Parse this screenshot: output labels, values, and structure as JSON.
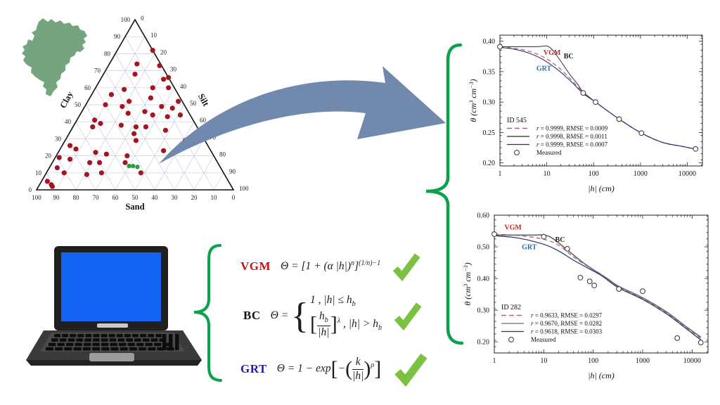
{
  "figure": {
    "background": "#ffffff",
    "map": {
      "name": "Brazil",
      "fill": "#74a57e"
    },
    "arrow": {
      "fill": "#7189ac"
    },
    "brace_color": "#0ba24c",
    "check_color": "#7dc142"
  },
  "equations": [
    {
      "name": "VGM",
      "color": "#cc1111",
      "tokens": [
        {
          "k": "txt",
          "t": "Θ = [1 + (α |h|)"
        },
        {
          "k": "sup",
          "t": "n"
        },
        {
          "k": "txt",
          "t": "]"
        },
        {
          "k": "sup",
          "t": "(1/n)−1"
        }
      ]
    },
    {
      "name": "BC",
      "color": "#111111",
      "tokens": [
        {
          "k": "txt",
          "t": "Θ = "
        },
        {
          "k": "cases",
          "rows": [
            [
              {
                "k": "txt",
                "t": "1 ,  |h| ≤ h"
              },
              {
                "k": "sub",
                "t": "b"
              }
            ],
            [
              {
                "k": "big",
                "t": "["
              },
              {
                "k": "frac",
                "num": [
                  {
                    "k": "txt",
                    "t": "h"
                  },
                  {
                    "k": "sub",
                    "t": "b"
                  }
                ],
                "den": [
                  {
                    "k": "txt",
                    "t": "|h|"
                  }
                ]
              },
              {
                "k": "big",
                "t": "]"
              },
              {
                "k": "sup",
                "t": "λ"
              },
              {
                "k": "txt",
                "t": " ,  |h| > h"
              },
              {
                "k": "sub",
                "t": "b"
              }
            ]
          ]
        }
      ]
    },
    {
      "name": "GRT",
      "color": "#1a1abd",
      "tokens": [
        {
          "k": "txt",
          "t": "Θ = 1 − exp"
        },
        {
          "k": "big",
          "t": "["
        },
        {
          "k": "txt",
          "t": "−"
        },
        {
          "k": "big",
          "t": "("
        },
        {
          "k": "frac",
          "num": [
            {
              "k": "txt",
              "t": "k"
            }
          ],
          "den": [
            {
              "k": "txt",
              "t": "|h|"
            }
          ]
        },
        {
          "k": "big",
          "t": ")"
        },
        {
          "k": "sup",
          "t": "ρ"
        },
        {
          "k": "big",
          "t": "]"
        }
      ]
    }
  ],
  "chart_data": [
    {
      "type": "scatter",
      "subtype": "ternary-soil-texture",
      "axes": {
        "left": "Clay",
        "right": "Silt",
        "bottom": "Sand"
      },
      "tick_values": [
        0,
        10,
        20,
        30,
        40,
        50,
        60,
        70,
        80,
        90,
        100
      ],
      "grid": true,
      "grid_color": "#c9cde4",
      "point_color": "#a31621",
      "highlight_color": "#2e9e41",
      "points_clay_sand": [
        [
          82,
          0
        ],
        [
          74,
          12
        ],
        [
          73,
          1
        ],
        [
          68,
          16
        ],
        [
          66,
          0
        ],
        [
          65,
          3
        ],
        [
          60,
          11
        ],
        [
          59,
          26
        ],
        [
          60,
          3
        ],
        [
          56,
          34
        ],
        [
          54,
          15
        ],
        [
          52,
          2
        ],
        [
          52,
          27
        ],
        [
          50,
          40
        ],
        [
          49,
          32
        ],
        [
          49,
          12
        ],
        [
          48,
          7
        ],
        [
          46,
          22
        ],
        [
          45,
          31
        ],
        [
          44,
          19
        ],
        [
          43,
          12
        ],
        [
          44,
          5
        ],
        [
          41,
          50
        ],
        [
          39,
          48
        ],
        [
          38,
          38
        ],
        [
          37,
          53
        ],
        [
          37,
          31
        ],
        [
          37,
          26
        ],
        [
          35,
          17
        ],
        [
          33,
          34
        ],
        [
          29,
          35
        ],
        [
          29,
          10
        ],
        [
          28,
          7
        ],
        [
          26,
          70
        ],
        [
          24,
          68
        ],
        [
          22,
          59
        ],
        [
          21,
          54
        ],
        [
          20,
          44
        ],
        [
          23,
          24
        ],
        [
          19,
          79
        ],
        [
          18,
          74
        ],
        [
          16,
          65
        ],
        [
          16,
          60
        ],
        [
          16,
          47
        ],
        [
          13,
          83
        ],
        [
          10,
          81
        ],
        [
          9,
          70
        ],
        [
          10,
          62
        ],
        [
          10,
          42
        ],
        [
          5,
          92
        ],
        [
          3,
          91
        ],
        [
          2,
          91
        ]
      ],
      "highlight_points_clay_sand": [
        [
          14,
          46
        ],
        [
          14,
          44
        ],
        [
          13.5,
          42
        ]
      ]
    },
    {
      "type": "line",
      "id_label": "ID 545",
      "xlabel": "|h| (cm)",
      "ylabel_rich": [
        {
          "t": "θ (cm"
        },
        {
          "t": "3",
          "sup": true
        },
        {
          "t": " cm"
        },
        {
          "t": "−3",
          "sup": true
        },
        {
          "t": ")"
        }
      ],
      "xscale": "log",
      "xlim": [
        1,
        21000
      ],
      "ylim": [
        0.195,
        0.41
      ],
      "xticks": [
        1,
        10,
        100,
        1000,
        10000
      ],
      "yticks": [
        0.2,
        0.25,
        0.3,
        0.35,
        0.4
      ],
      "yminor": 0.01,
      "series": [
        {
          "name": "VGM",
          "color": "#bb5f76",
          "dash": "6,4",
          "width": 1.3,
          "points": [
            [
              1,
              0.3905
            ],
            [
              2,
              0.3885
            ],
            [
              4,
              0.384
            ],
            [
              7,
              0.377
            ],
            [
              11,
              0.369
            ],
            [
              20,
              0.3535
            ],
            [
              35,
              0.335
            ],
            [
              60,
              0.3155
            ],
            [
              110,
              0.3
            ],
            [
              350,
              0.272
            ],
            [
              1050,
              0.249
            ],
            [
              3000,
              0.2335
            ],
            [
              8000,
              0.227
            ],
            [
              15000,
              0.2225
            ]
          ]
        },
        {
          "name": "BC",
          "color": "#2f2f2f",
          "dash": null,
          "width": 1,
          "points": [
            [
              1,
              0.391
            ],
            [
              6,
              0.391
            ],
            [
              11,
              0.391
            ],
            [
              18,
              0.372
            ],
            [
              30,
              0.347
            ],
            [
              45,
              0.33
            ],
            [
              60,
              0.3165
            ],
            [
              110,
              0.3
            ],
            [
              350,
              0.272
            ],
            [
              1050,
              0.249
            ],
            [
              3000,
              0.2335
            ],
            [
              8000,
              0.227
            ],
            [
              15000,
              0.2225
            ]
          ]
        },
        {
          "name": "GRT",
          "color": "#23356f",
          "dash": null,
          "width": 1.1,
          "points": [
            [
              1,
              0.39
            ],
            [
              2,
              0.387
            ],
            [
              4,
              0.381
            ],
            [
              7,
              0.373
            ],
            [
              11,
              0.364
            ],
            [
              20,
              0.349
            ],
            [
              35,
              0.332
            ],
            [
              60,
              0.314
            ],
            [
              110,
              0.3
            ],
            [
              350,
              0.272
            ],
            [
              1050,
              0.249
            ],
            [
              3000,
              0.2335
            ],
            [
              8000,
              0.227
            ],
            [
              15000,
              0.2225
            ]
          ]
        }
      ],
      "measured": [
        [
          1,
          0.391
        ],
        [
          60,
          0.315
        ],
        [
          110,
          0.3
        ],
        [
          350,
          0.272
        ],
        [
          1050,
          0.249
        ],
        [
          15000,
          0.223
        ]
      ],
      "measured_label": "Measured",
      "annotations": [
        {
          "text": "VGM",
          "x": 8.5,
          "y": 0.3775,
          "color": "#cc2222"
        },
        {
          "text": "BC",
          "x": 23,
          "y": 0.372,
          "color": "#222222"
        },
        {
          "text": "GRT",
          "x": 6,
          "y": 0.3515,
          "color": "#2e6da4"
        }
      ],
      "legend": [
        {
          "style": "dashed",
          "color": "#bb5f76",
          "label": "r = 0.9999, RMSE = 0.0009"
        },
        {
          "style": "solid",
          "color": "#2f2f2f",
          "label": "r = 0.9998, RMSE = 0.0011"
        },
        {
          "style": "solid",
          "color": "#23356f",
          "label": "r = 0.9999, RMSE = 0.0007"
        },
        {
          "style": "marker",
          "color": "#333333",
          "label": "Measured"
        }
      ]
    },
    {
      "type": "line",
      "id_label": "ID 282",
      "xlabel": "|h| (cm)",
      "ylabel_rich": [
        {
          "t": "θ (cm"
        },
        {
          "t": "3",
          "sup": true
        },
        {
          "t": " cm"
        },
        {
          "t": "−3",
          "sup": true
        },
        {
          "t": ")"
        }
      ],
      "xscale": "log",
      "xlim": [
        1,
        21000
      ],
      "ylim": [
        0.165,
        0.6
      ],
      "xticks": [
        1,
        10,
        100,
        1000,
        10000
      ],
      "yticks": [
        0.2,
        0.3,
        0.4,
        0.5,
        0.6
      ],
      "yminor": 0.02,
      "series": [
        {
          "name": "VGM",
          "color": "#bb5f76",
          "dash": "6,4",
          "width": 1.3,
          "points": [
            [
              1,
              0.54
            ],
            [
              3,
              0.536
            ],
            [
              10,
              0.524
            ],
            [
              20,
              0.505
            ],
            [
              40,
              0.468
            ],
            [
              80,
              0.437
            ],
            [
              150,
              0.412
            ],
            [
              330,
              0.373
            ],
            [
              1000,
              0.337
            ],
            [
              3000,
              0.292
            ],
            [
              7000,
              0.249
            ],
            [
              15000,
              0.211
            ]
          ]
        },
        {
          "name": "BC",
          "color": "#6f6f6f",
          "dash": null,
          "width": 1.8,
          "points": [
            [
              1,
              0.537
            ],
            [
              6,
              0.537
            ],
            [
              10,
              0.537
            ],
            [
              15,
              0.527
            ],
            [
              30,
              0.49
            ],
            [
              60,
              0.452
            ],
            [
              100,
              0.428
            ],
            [
              200,
              0.398
            ],
            [
              330,
              0.375
            ],
            [
              1000,
              0.339
            ],
            [
              3000,
              0.295
            ],
            [
              7000,
              0.252
            ],
            [
              15000,
              0.215
            ]
          ]
        },
        {
          "name": "GRT",
          "color": "#23356f",
          "dash": null,
          "width": 1.2,
          "points": [
            [
              1,
              0.535
            ],
            [
              3,
              0.528
            ],
            [
              10,
              0.508
            ],
            [
              20,
              0.487
            ],
            [
              40,
              0.458
            ],
            [
              80,
              0.432
            ],
            [
              150,
              0.408
            ],
            [
              330,
              0.37
            ],
            [
              1000,
              0.334
            ],
            [
              3000,
              0.289
            ],
            [
              7000,
              0.246
            ],
            [
              15000,
              0.206
            ]
          ]
        }
      ],
      "measured": [
        [
          1,
          0.54
        ],
        [
          10,
          0.532
        ],
        [
          30,
          0.494
        ],
        [
          55,
          0.403
        ],
        [
          85,
          0.391
        ],
        [
          105,
          0.378
        ],
        [
          330,
          0.367
        ],
        [
          1000,
          0.36
        ],
        [
          5000,
          0.212
        ],
        [
          15000,
          0.198
        ]
      ],
      "measured_label": "Measured",
      "annotations": [
        {
          "text": "VGM",
          "x": 1.6,
          "y": 0.555,
          "color": "#cc2222"
        },
        {
          "text": "BC",
          "x": 17,
          "y": 0.516,
          "color": "#222222"
        },
        {
          "text": "GRT",
          "x": 3.6,
          "y": 0.492,
          "color": "#2e6da4"
        }
      ],
      "legend": [
        {
          "style": "dashed",
          "color": "#bb5f76",
          "label": "r = 0.9633, RMSE = 0.0297"
        },
        {
          "style": "solid",
          "color": "#6f6f6f",
          "label": "r = 0.9670, RMSE = 0.0282"
        },
        {
          "style": "solid",
          "color": "#23356f",
          "label": "r = 0.9618, RMSE = 0.0303"
        },
        {
          "style": "marker",
          "color": "#333333",
          "label": "Measured"
        }
      ]
    }
  ]
}
